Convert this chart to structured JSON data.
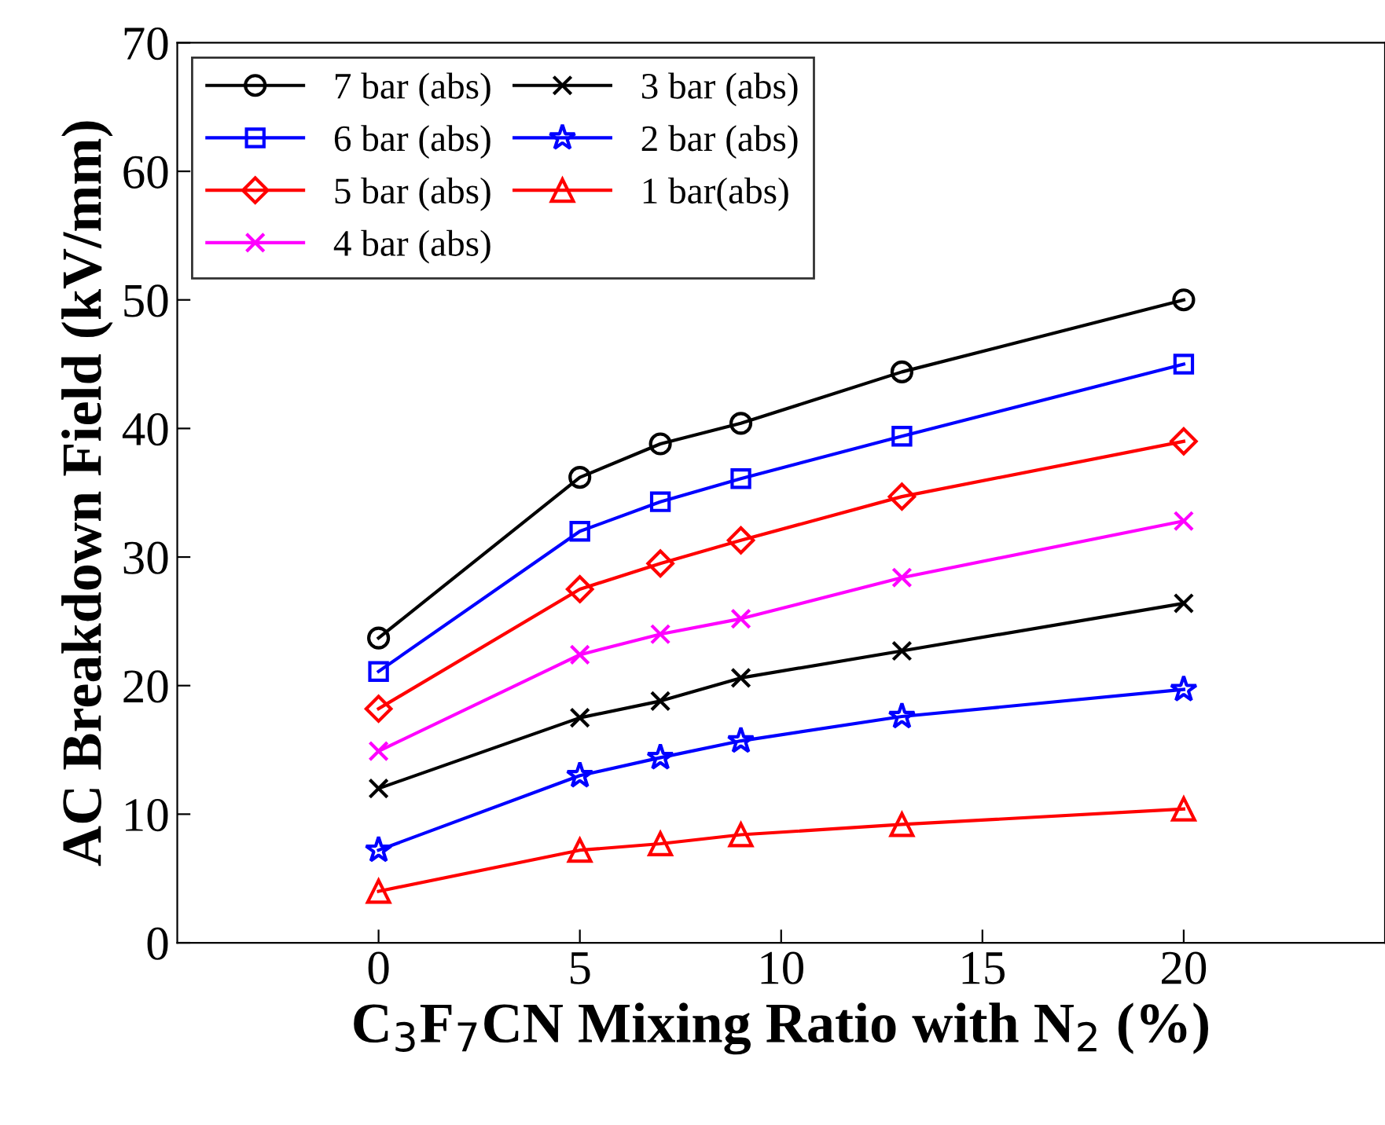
{
  "chart_data": {
    "type": "line",
    "xlabel": "C$_{3}$F$_{7}$CN Mixing Ratio with N$_{2}$ (%)",
    "ylabel": "AC Breakdown Field (kV/mm)",
    "x": [
      0,
      5,
      7,
      9,
      13,
      20
    ],
    "xlim": [
      -5,
      25
    ],
    "xticks": [
      0,
      5,
      10,
      15,
      20
    ],
    "ylim": [
      0,
      70
    ],
    "yticks": [
      0,
      10,
      20,
      30,
      40,
      50,
      60,
      70
    ],
    "grid": false,
    "legend": "top left",
    "line_style": "solid",
    "series": [
      {
        "name": "7 bar (abs)",
        "color": "#000000",
        "marker": "circle",
        "values": [
          23.7,
          36.2,
          38.8,
          40.4,
          44.4,
          50.0
        ]
      },
      {
        "name": "6 bar (abs)",
        "color": "#0000ff",
        "marker": "square",
        "values": [
          21.1,
          32.0,
          34.3,
          36.1,
          39.4,
          45.0
        ]
      },
      {
        "name": "5 bar (abs)",
        "color": "#ff0000",
        "marker": "diamond",
        "values": [
          18.2,
          27.5,
          29.5,
          31.3,
          34.7,
          39.0
        ]
      },
      {
        "name": "4 bar (abs)",
        "color": "#ff00ff",
        "marker": "cross",
        "values": [
          14.9,
          22.4,
          24.0,
          25.2,
          28.4,
          32.8
        ]
      },
      {
        "name": "3 bar (abs)",
        "color": "#000000",
        "marker": "cross",
        "values": [
          12.0,
          17.5,
          18.8,
          20.6,
          22.7,
          26.4
        ]
      },
      {
        "name": "2 bar (abs)",
        "color": "#0000ff",
        "marker": "star",
        "values": [
          7.2,
          13.0,
          14.4,
          15.7,
          17.6,
          19.7
        ]
      },
      {
        "name": "1 bar(abs)",
        "color": "#ff0000",
        "marker": "triangle",
        "values": [
          4.0,
          7.2,
          7.7,
          8.4,
          9.2,
          10.4
        ]
      }
    ]
  }
}
